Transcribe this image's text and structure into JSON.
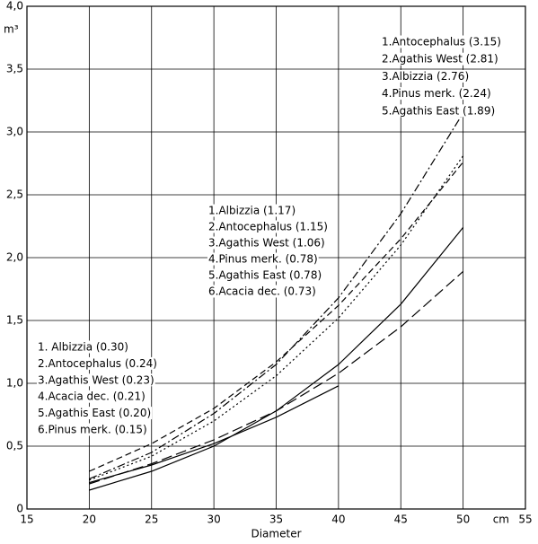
{
  "chart_data": {
    "type": "line",
    "x_label": "Diameter",
    "x_unit": "cm",
    "y_unit": "m³",
    "x": [
      20,
      25,
      30,
      35,
      40,
      45,
      50
    ],
    "series": [
      {
        "name": "Albizzia",
        "color": "#000000",
        "style": "dashed",
        "values": [
          0.3,
          0.52,
          0.8,
          1.17,
          1.62,
          2.15,
          2.76
        ]
      },
      {
        "name": "Antocephalus",
        "color": "#000000",
        "style": "dashdot",
        "values": [
          0.24,
          0.45,
          0.76,
          1.15,
          1.68,
          2.35,
          3.15
        ]
      },
      {
        "name": "Agathis West",
        "color": "#000000",
        "style": "dotted",
        "values": [
          0.23,
          0.42,
          0.7,
          1.06,
          1.52,
          2.1,
          2.81
        ]
      },
      {
        "name": "Pinus merk.",
        "color": "#000000",
        "style": "solid",
        "values": [
          0.15,
          0.3,
          0.5,
          0.78,
          1.15,
          1.63,
          2.24
        ]
      },
      {
        "name": "Agathis East",
        "color": "#000000",
        "style": "longdash",
        "values": [
          0.2,
          0.36,
          0.55,
          0.78,
          1.08,
          1.45,
          1.89
        ]
      },
      {
        "name": "Acacia dec.",
        "color": "#000000",
        "style": "solid",
        "values": [
          0.21,
          0.35,
          0.52,
          0.73,
          0.98,
          null,
          null
        ]
      }
    ],
    "annotations": [
      [
        "1.Antocephalus (3.15)",
        "2.Agathis West (2.81)",
        "3.Albizzia (2.76)",
        "4.Pinus merk. (2.24)",
        "5.Agathis East (1.89)"
      ],
      [
        "1.Albizzia (1.17)",
        "2.Antocephalus (1.15)",
        "3.Agathis West (1.06)",
        "4.Pinus merk. (0.78)",
        "5.Agathis East (0.78)",
        "6.Acacia dec. (0.73)"
      ],
      [
        "1. Albizzia (0.30)",
        "2.Antocephalus (0.24)",
        "3.Agathis West (0.23)",
        "4.Acacia dec. (0.21)",
        "5.Agathis East (0.20)",
        "6.Pinus merk. (0.15)"
      ]
    ],
    "xlim": [
      15,
      55
    ],
    "xticks": [
      15,
      20,
      25,
      30,
      35,
      40,
      45,
      50,
      55
    ],
    "ylim": [
      0,
      4.0
    ],
    "yticks": [
      0,
      {
        "value": 0.5,
        "label": "0,5"
      },
      {
        "value": 1.0,
        "label": "1,0"
      },
      {
        "value": 1.5,
        "label": "1,5"
      },
      {
        "value": 2.0,
        "label": "2,0"
      },
      {
        "value": 2.5,
        "label": "2,5"
      },
      {
        "value": 3.0,
        "label": "3,0"
      },
      {
        "value": 3.5,
        "label": "3,5"
      },
      {
        "value": 4.0,
        "label": "4,0"
      }
    ],
    "grid": true
  }
}
